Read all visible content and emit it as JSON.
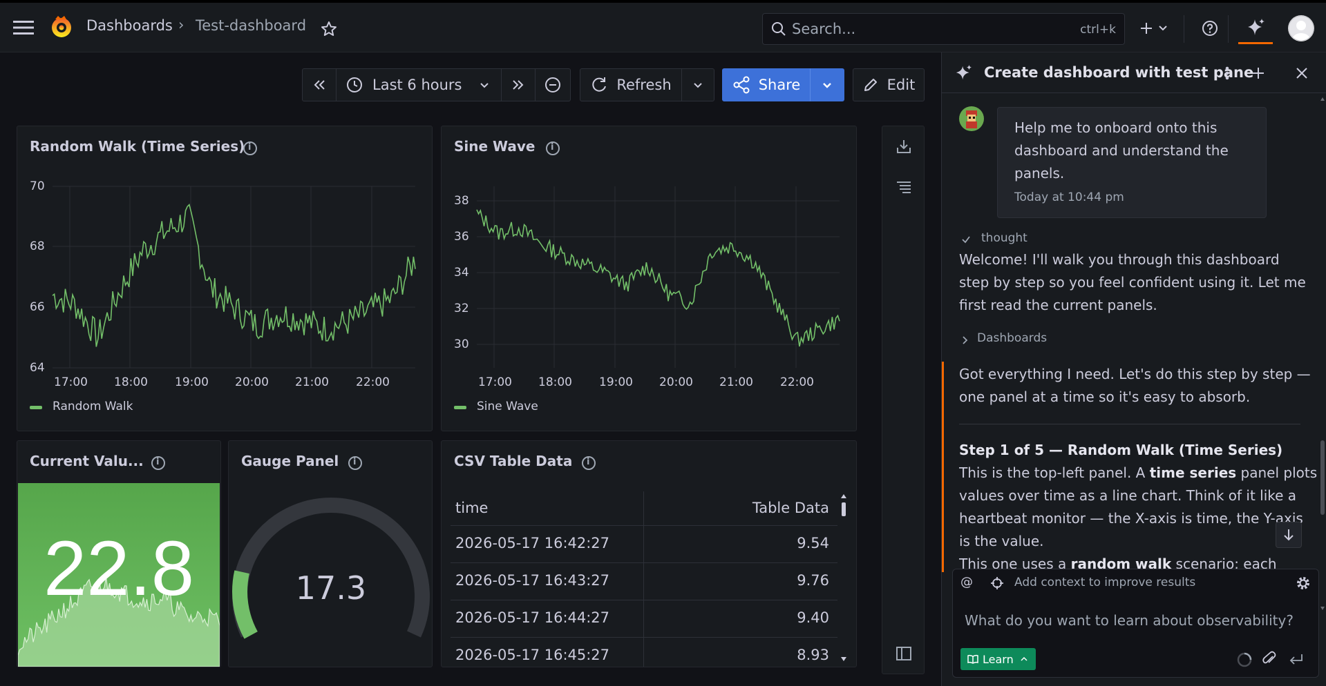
{
  "topbar": {
    "breadcrumb_root": "Dashboards",
    "breadcrumb_sep": "›",
    "breadcrumb_current": "Test-dashboard",
    "search_placeholder": "Search...",
    "search_shortcut": "ctrl+k"
  },
  "toolbar": {
    "time_range": "Last 6 hours",
    "refresh_label": "Refresh",
    "share_label": "Share",
    "edit_label": "Edit"
  },
  "panels": {
    "random_walk": {
      "title": "Random Walk (Time Series)",
      "legend": "Random Walk",
      "y_ticks": [
        "70",
        "68",
        "66",
        "64"
      ],
      "x_ticks": [
        "17:00",
        "18:00",
        "19:00",
        "20:00",
        "21:00",
        "22:00"
      ]
    },
    "sine_wave": {
      "title": "Sine Wave",
      "legend": "Sine Wave",
      "y_ticks": [
        "38",
        "36",
        "34",
        "32",
        "30"
      ],
      "x_ticks": [
        "17:00",
        "18:00",
        "19:00",
        "20:00",
        "21:00",
        "22:00"
      ]
    },
    "current_value": {
      "title": "Current Valu...",
      "value": "22.8"
    },
    "gauge": {
      "title": "Gauge Panel",
      "value": "17.3"
    },
    "csv_table": {
      "title": "CSV Table Data",
      "col_time": "time",
      "col_value": "Table Data",
      "rows": [
        {
          "time": "2026-05-17 16:42:27",
          "value": "9.54"
        },
        {
          "time": "2026-05-17 16:43:27",
          "value": "9.76"
        },
        {
          "time": "2026-05-17 16:44:27",
          "value": "9.40"
        },
        {
          "time": "2026-05-17 16:45:27",
          "value": "8.93"
        }
      ]
    }
  },
  "assistant": {
    "title": "Create dashboard with test pane",
    "user_message": "Help me to onboard onto this dashboard and understand the panels.",
    "user_time": "Today at 10:44 pm",
    "thought_label": "thought",
    "welcome": "Welcome! I'll walk you through this dashboard step by step so you feel confident using it. Let me first read the current panels.",
    "tool_label": "Dashboards",
    "got_everything": "Got everything I need. Let's do this step by step — one panel at a time so it's easy to absorb.",
    "step_heading": "Step 1 of 5 — Random Walk (Time Series)",
    "step_p1": "This is the top-left panel. A ",
    "step_b1": "time series",
    "step_p2": " panel plots values over time as a line chart. Think of it like a heartbeat monitor — the X-axis is time, the Y-axis is the value.",
    "step_p3": "This one uses a ",
    "step_b2": "random walk",
    "step_p4": " scenario; each",
    "context_placeholder": "Add context to improve results",
    "input_placeholder": "What do you want to learn about observability?",
    "learn_label": "Learn"
  },
  "colors": {
    "accent": "#3d71d9",
    "series": "#73bf69",
    "stat_bg": "#56a64b",
    "assistant_accent": "#f46800"
  }
}
